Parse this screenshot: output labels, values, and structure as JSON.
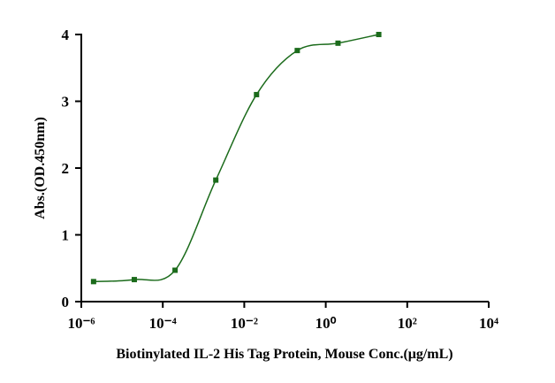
{
  "chart_data": {
    "type": "scatter",
    "x_label": "Biotinylated IL-2 His Tag Protein, Mouse  Conc.(μg/mL)",
    "y_label": "Abs.(OD.450nm)",
    "x_scale": "log",
    "x": [
      2e-06,
      2e-05,
      0.0002,
      0.002,
      0.02,
      0.2,
      2,
      20
    ],
    "series": [
      {
        "color": "#1b6b1b",
        "values": [
          0.3,
          0.33,
          0.47,
          1.82,
          3.1,
          3.76,
          3.87,
          4.0
        ]
      }
    ],
    "xlim": [
      1e-06,
      10000
    ],
    "xticks": [
      {
        "value": 1e-06,
        "label": "10⁻⁶"
      },
      {
        "value": 0.0001,
        "label": "10⁻⁴"
      },
      {
        "value": 0.01,
        "label": "10⁻²"
      },
      {
        "value": 1,
        "label": "10⁰"
      },
      {
        "value": 100,
        "label": "10²"
      },
      {
        "value": 10000,
        "label": "10⁴"
      }
    ],
    "ylim": [
      0,
      4
    ],
    "yticks": [
      0,
      1,
      2,
      3,
      4
    ]
  }
}
